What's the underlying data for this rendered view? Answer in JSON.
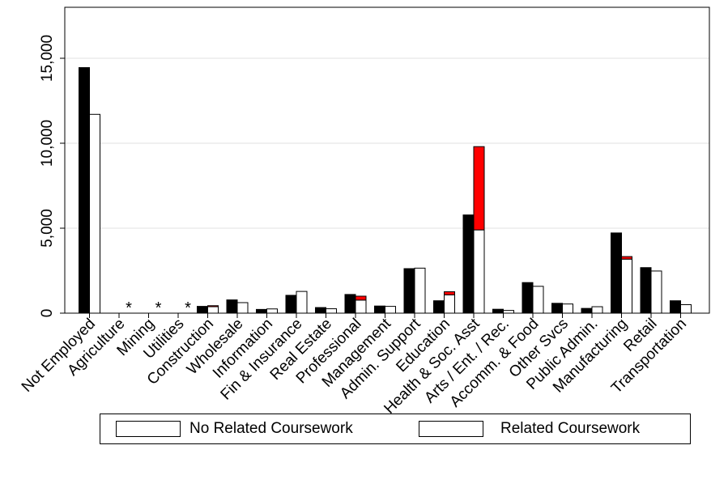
{
  "chart_data": {
    "type": "bar",
    "categories": [
      "Not Employed",
      "Agriculture",
      "Mining",
      "Utilities",
      "Construction",
      "Wholesale",
      "Information",
      "Fin & Insurance",
      "Real Estate",
      "Professional",
      "Management",
      "Admin. Support",
      "Education",
      "Health & Soc. Asst",
      "Arts / Ent. / Rec.",
      "Accomm. & Food",
      "Other Svcs",
      "Public Admin.",
      "Manufacturing",
      "Retail",
      "Transportation"
    ],
    "ylim": [
      0,
      18000
    ],
    "yticks": [
      0,
      5000,
      10000,
      15000
    ],
    "ytick_labels": [
      "0",
      "5,000",
      "10,000",
      "15,000"
    ],
    "suppressed_marker": "*",
    "suppressed_categories": [
      "Agriculture",
      "Mining",
      "Utilities"
    ],
    "grid": true,
    "series": [
      {
        "values": [
          14450,
          null,
          null,
          null,
          400,
          780,
          220,
          1050,
          330,
          1100,
          420,
          2620,
          730,
          5780,
          230,
          1800,
          580,
          280,
          4720,
          2680,
          730
        ],
        "color": "#000000"
      },
      {
        "name": "No Related Coursework",
        "values": [
          11700,
          null,
          null,
          null,
          380,
          620,
          250,
          1280,
          260,
          770,
          400,
          2650,
          1080,
          4900,
          160,
          1580,
          540,
          380,
          3180,
          2480,
          500
        ],
        "color": "#ffffff"
      },
      {
        "name": "Related Coursework",
        "values": [
          0,
          null,
          null,
          null,
          60,
          0,
          0,
          0,
          0,
          230,
          0,
          0,
          180,
          4900,
          0,
          0,
          0,
          0,
          150,
          0,
          0
        ],
        "color": "#ff0000"
      }
    ],
    "legend": {
      "position": "bottom",
      "items": [
        {
          "label": "No Related Coursework",
          "color": "#ffffff"
        },
        {
          "label": "Related Coursework",
          "color": "#ff0000"
        }
      ]
    }
  }
}
